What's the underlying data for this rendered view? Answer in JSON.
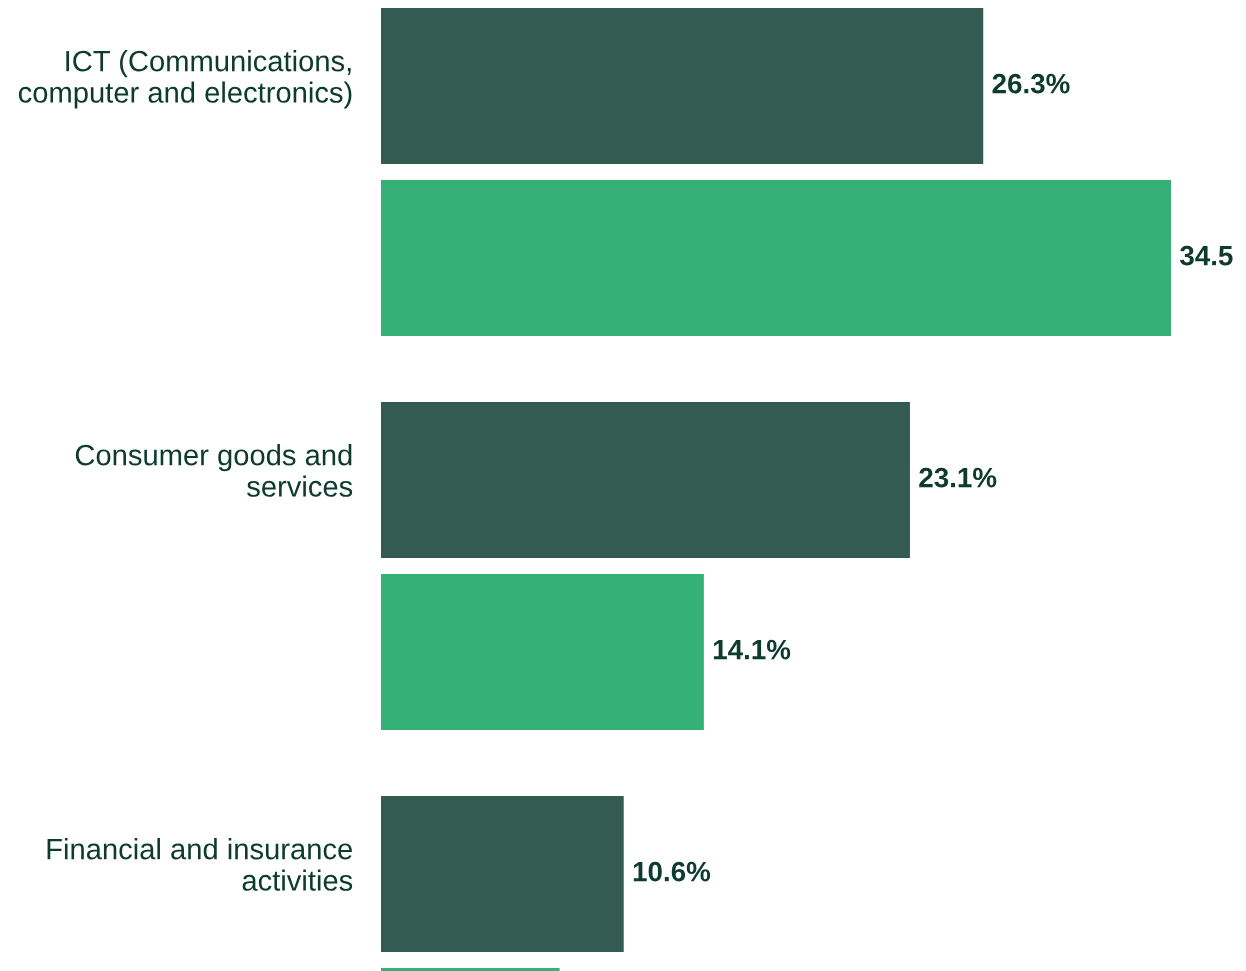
{
  "chart_data": {
    "type": "bar",
    "orientation": "horizontal",
    "categories": [
      "ICT (Communications,\ncomputer and electronics)",
      "Consumer goods and\nservices",
      "Financial and insurance\nactivities"
    ],
    "series": [
      {
        "color": "#345b51",
        "values": [
          26.3,
          23.1,
          10.6
        ],
        "value_labels": [
          "26.3%",
          "23.1%",
          "10.6%"
        ]
      },
      {
        "color": "#35b076",
        "values": [
          34.5,
          14.1,
          7.8
        ],
        "value_labels": [
          "34.5",
          "14.1%",
          null
        ]
      }
    ],
    "grid": false,
    "legend": false
  }
}
